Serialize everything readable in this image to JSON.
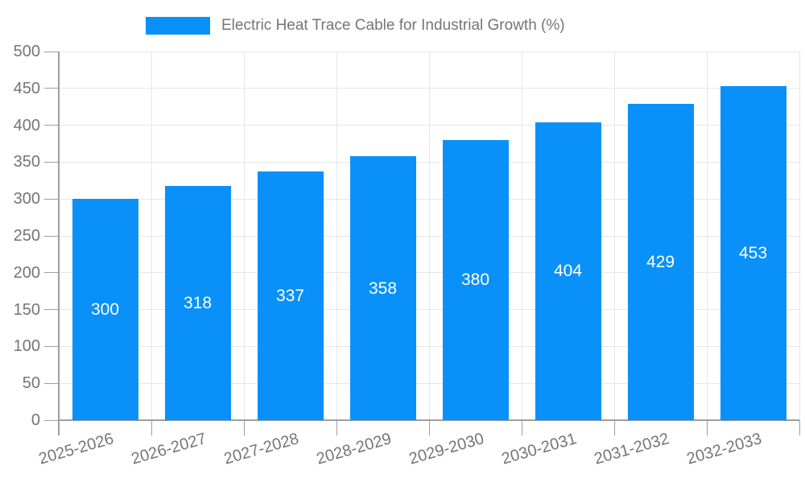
{
  "chart_data": {
    "type": "bar",
    "title": "Electric Heat Trace Cable for Industrial Growth (%)",
    "legend_entries": [
      "Electric Heat Trace Cable for Industrial Growth (%)"
    ],
    "legend_position": "top",
    "categories": [
      "2025-2026",
      "2026-2027",
      "2027-2028",
      "2028-2029",
      "2029-2030",
      "2030-2031",
      "2031-2032",
      "2032-2033"
    ],
    "values": [
      300,
      318,
      337,
      358,
      380,
      404,
      429,
      453
    ],
    "value_labels_shown": true,
    "value_label_position": "inside-center",
    "xlabel": "",
    "ylabel": "",
    "ylim": [
      0,
      500
    ],
    "ytick_step": 50,
    "yticks": [
      0,
      50,
      100,
      150,
      200,
      250,
      300,
      350,
      400,
      450,
      500
    ],
    "grid": true
  },
  "colors": {
    "bar": "#0991F9",
    "grid": "#E6E6E6",
    "axis": "#9E9E9E",
    "tick_label": "#757575",
    "legend_text": "#757575",
    "value_label": "#FFFFFF",
    "background": "#FFFFFF"
  }
}
